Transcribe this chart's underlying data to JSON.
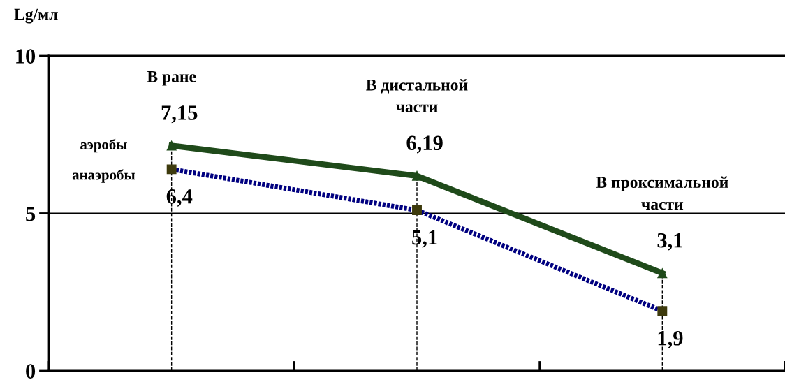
{
  "chart_data": {
    "type": "line",
    "ylabel": "Lg/мл",
    "categories": [
      "В ране",
      "В дистальной\nчасти",
      "В проксимальной\nчасти"
    ],
    "series": [
      {
        "name": "аэробы",
        "color": "#1f4a1a",
        "marker": "triangle",
        "values": [
          7.15,
          6.19,
          3.1
        ],
        "value_labels": [
          "7,15",
          "6,19",
          "3,1"
        ]
      },
      {
        "name": "анаэробы",
        "color": "#000080",
        "marker": "square",
        "line_style": "dotted",
        "values": [
          6.4,
          5.1,
          1.9
        ],
        "value_labels": [
          "6,4",
          "5,1",
          "1,9"
        ]
      }
    ],
    "ylim": [
      0,
      10
    ],
    "yticks": [
      0,
      5,
      10
    ],
    "ref_lines": [
      {
        "axis": "y",
        "value": 5,
        "line_style": "solid",
        "color": "#000000"
      },
      {
        "axis": "x",
        "value": "В ране",
        "line_style": "dashed",
        "color": "#000000"
      },
      {
        "axis": "x",
        "value": "В дистальной\nчасти",
        "line_style": "dashed",
        "color": "#000000"
      },
      {
        "axis": "x",
        "value": "В проксимальной\nчасти",
        "line_style": "dashed",
        "color": "#000000"
      }
    ]
  }
}
